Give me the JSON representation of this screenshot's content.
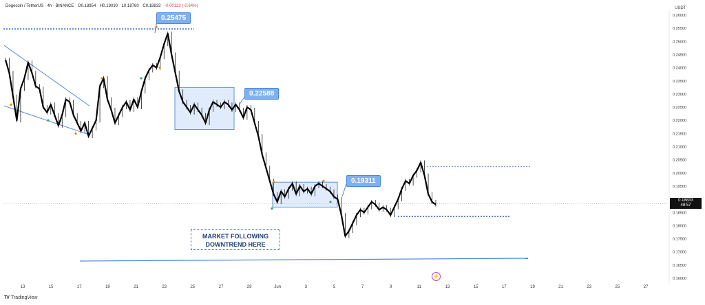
{
  "header": {
    "symbol": "Dogecoin / TetherUS · 4h · BINANCE",
    "open": "O0.18954",
    "high": "H0.19030",
    "low": "L0.18760",
    "close": "C0.18833",
    "change": "-0.00122 (-0.64%)"
  },
  "unit": "USDT",
  "current_price": {
    "value": "0.18833",
    "countdown": "48:57"
  },
  "callouts": {
    "c1": "0.25475",
    "c2": "0.22588",
    "c3": "0.19311"
  },
  "annotation": {
    "line1": "MARKET FOLLOWING",
    "line2": "DOWNTREND HERE"
  },
  "branding": {
    "logo": "TradingView",
    "mark": "TV"
  },
  "colors": {
    "accent": "#4a86d9",
    "candle": "#111111",
    "zone": "#d6e6fb"
  },
  "chart_data": {
    "type": "line",
    "title": "",
    "xlabel": "",
    "ylabel": "",
    "ylim": [
      0.16,
      0.26
    ],
    "y_axis_side": "right",
    "y_ticks": [
      "0.26000",
      "0.25500",
      "0.25000",
      "0.24500",
      "0.24000",
      "0.23500",
      "0.23000",
      "0.22500",
      "0.22000",
      "0.21500",
      "0.21000",
      "0.20500",
      "0.20000",
      "0.19500",
      "0.19000",
      "0.18500",
      "0.18000",
      "0.17500",
      "0.17000",
      "0.16500",
      "0.16000"
    ],
    "x_ticks": [
      "13",
      "15",
      "17",
      "19",
      "21",
      "23",
      "25",
      "27",
      "29",
      "Jun",
      "3",
      "5",
      "7",
      "9",
      "11",
      "13",
      "15",
      "17",
      "19",
      "21",
      "23",
      "25",
      "27"
    ],
    "series": [
      {
        "values": [
          0.243,
          0.238,
          0.229,
          0.22,
          0.232,
          0.236,
          0.242,
          0.238,
          0.233,
          0.232,
          0.225,
          0.223,
          0.226,
          0.222,
          0.218,
          0.222,
          0.228,
          0.227,
          0.222,
          0.219,
          0.216,
          0.219,
          0.214,
          0.217,
          0.22,
          0.233,
          0.236,
          0.228,
          0.224,
          0.219,
          0.222,
          0.225,
          0.227,
          0.224,
          0.228,
          0.225,
          0.231,
          0.236,
          0.239,
          0.241,
          0.24,
          0.244,
          0.249,
          0.253,
          0.245,
          0.238,
          0.231,
          0.227,
          0.225,
          0.223,
          0.226,
          0.224,
          0.222,
          0.219,
          0.224,
          0.227,
          0.226,
          0.225,
          0.227,
          0.226,
          0.224,
          0.226,
          0.224,
          0.221,
          0.225,
          0.224,
          0.219,
          0.214,
          0.207,
          0.202,
          0.197,
          0.192,
          0.189,
          0.193,
          0.191,
          0.194,
          0.196,
          0.192,
          0.195,
          0.193,
          0.194,
          0.192,
          0.195,
          0.196,
          0.195,
          0.194,
          0.193,
          0.191,
          0.19,
          0.184,
          0.176,
          0.178,
          0.181,
          0.184,
          0.186,
          0.185,
          0.187,
          0.189,
          0.188,
          0.186,
          0.187,
          0.186,
          0.184,
          0.187,
          0.19,
          0.194,
          0.197,
          0.196,
          0.199,
          0.201,
          0.204,
          0.199,
          0.192,
          0.189,
          0.188
        ]
      }
    ],
    "annotations": [
      {
        "text": "0.25475",
        "y": 0.25475
      },
      {
        "text": "0.22588",
        "y": 0.22588
      },
      {
        "text": "0.19311",
        "y": 0.19311
      },
      {
        "text": "MARKET FOLLOWING DOWNTREND HERE"
      }
    ],
    "levels": [
      0.25475,
      0.2025,
      0.1835,
      0.168
    ],
    "grid": false,
    "legend": "none"
  }
}
